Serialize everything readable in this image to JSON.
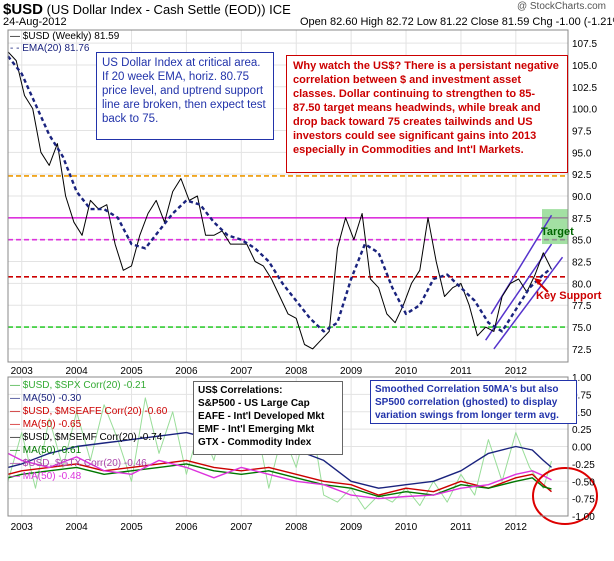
{
  "header": {
    "symbol": "$USD",
    "name": "(US Dollar Index - Cash Settle (EOD)) ICE",
    "date": "24-Aug-2012",
    "ohlc": "Open 82.60  High 82.72  Low 81.22  Close 81.59  Chg -1.00 (-1.21%)",
    "watermark": "@ StockCharts.com"
  },
  "legend_top": [
    {
      "label": "$USD (Weekly) 81.59",
      "color": "#000000"
    },
    {
      "label": "EMA(20) 81.76",
      "color": "#1a237e"
    }
  ],
  "annotations": {
    "blue_note": "US Dollar Index at critical area. If 20 week EMA, horiz. 80.75 price level, and uptrend support line are broken, then expect test back to 75.",
    "red_note": "Why watch the US$?  There is a persistant negative correlation between $ and investment asset classes.  Dollar continuing to strengthen to 85-87.50 target means headwinds, while break and drop back toward 75 creates tailwinds and US investors could see significant gains into 2013 especially in Commodities and Int'l Markets.",
    "target": "Target",
    "key_support": "Key Support",
    "corr_title": "US$ Correlations:",
    "corr_lines": [
      "S&P500 - US Large Cap",
      "EAFE - Int'l Developed Mkt",
      "EMF - Int'l Emerging Mkt",
      "GTX - Commodity Index"
    ],
    "smooth_note": "Smoothed Correlation 50MA's but also SP500 correlation (ghosted) to display variation swings from longer term avg."
  },
  "legend_bottom": [
    {
      "label": "$USD, $SPX Corr(20) -0.21",
      "color": "#33aa33"
    },
    {
      "label": "MA(50) -0.30",
      "color": "#1a237e"
    },
    {
      "label": "$USD, $MSEAFE Corr(20) -0.60",
      "color": "#cc0000"
    },
    {
      "label": "MA(50) -0.65",
      "color": "#cc0000"
    },
    {
      "label": "$USD, $MSEMF Corr(20) -0.74",
      "color": "#000000"
    },
    {
      "label": "MA(50) -0.61",
      "color": "#007700"
    },
    {
      "label": "$USD, $GTX Corr(20) -0.46",
      "color": "#aa44aa"
    },
    {
      "label": "MA(50) -0.48",
      "color": "#dd33dd"
    }
  ],
  "chart_data": [
    {
      "type": "line",
      "title": "$USD (US Dollar Index - Cash Settle (EOD)) ICE",
      "x_ticks": [
        "2003",
        "2004",
        "2005",
        "2006",
        "2007",
        "2008",
        "2009",
        "2010",
        "2011",
        "2012"
      ],
      "y_ticks": [
        72.5,
        75.0,
        77.5,
        80.0,
        82.5,
        85.0,
        87.5,
        90.0,
        92.5,
        95.0,
        97.5,
        100.0,
        102.5,
        105.0,
        107.5
      ],
      "ylim": [
        71,
        109
      ],
      "xlim": [
        2002.75,
        2012.95
      ],
      "horizontal_lines": [
        {
          "value": 92.3,
          "color": "#ee9900",
          "style": "dashed"
        },
        {
          "value": 87.5,
          "color": "#dd33dd",
          "style": "solid"
        },
        {
          "value": 85.0,
          "color": "#dd33dd",
          "style": "dashed"
        },
        {
          "value": 80.75,
          "color": "#cc0000",
          "style": "dashed"
        },
        {
          "value": 75.0,
          "color": "#33cc33",
          "style": "dashed"
        }
      ],
      "series": [
        {
          "name": "$USD (Weekly)",
          "color": "#000000",
          "x": [
            2002.75,
            2002.9,
            2003.05,
            2003.2,
            2003.35,
            2003.5,
            2003.65,
            2003.8,
            2003.95,
            2004.1,
            2004.25,
            2004.4,
            2004.55,
            2004.7,
            2004.85,
            2005.0,
            2005.15,
            2005.3,
            2005.45,
            2005.6,
            2005.75,
            2005.9,
            2006.05,
            2006.2,
            2006.35,
            2006.5,
            2006.65,
            2006.8,
            2006.95,
            2007.1,
            2007.25,
            2007.4,
            2007.55,
            2007.7,
            2007.85,
            2008.0,
            2008.15,
            2008.3,
            2008.45,
            2008.6,
            2008.75,
            2008.9,
            2009.05,
            2009.2,
            2009.35,
            2009.5,
            2009.65,
            2009.8,
            2009.95,
            2010.1,
            2010.25,
            2010.4,
            2010.55,
            2010.7,
            2010.85,
            2011.0,
            2011.15,
            2011.3,
            2011.45,
            2011.6,
            2011.75,
            2011.9,
            2012.05,
            2012.2,
            2012.35,
            2012.5,
            2012.65
          ],
          "values": [
            106.5,
            105.5,
            101.5,
            100.0,
            95.0,
            93.5,
            96.0,
            90.0,
            87.0,
            85.5,
            89.5,
            88.5,
            89.0,
            84.5,
            81.5,
            82.0,
            85.5,
            88.0,
            89.5,
            87.0,
            90.5,
            92.0,
            89.5,
            90.0,
            85.5,
            85.5,
            86.0,
            84.5,
            84.5,
            84.5,
            82.5,
            82.0,
            80.5,
            78.5,
            76.5,
            76.0,
            73.0,
            72.5,
            73.5,
            74.5,
            84.0,
            87.5,
            85.0,
            88.0,
            80.5,
            79.5,
            76.5,
            75.5,
            77.5,
            80.0,
            81.5,
            87.5,
            82.5,
            78.5,
            79.5,
            80.0,
            77.5,
            74.0,
            75.0,
            74.5,
            78.5,
            80.0,
            80.5,
            79.0,
            81.0,
            83.5,
            81.6
          ]
        },
        {
          "name": "EMA(20)",
          "color": "#1a237e",
          "x": [
            2002.75,
            2003.0,
            2003.25,
            2003.5,
            2003.75,
            2004.0,
            2004.25,
            2004.5,
            2004.75,
            2005.0,
            2005.25,
            2005.5,
            2005.75,
            2006.0,
            2006.25,
            2006.5,
            2006.75,
            2007.0,
            2007.25,
            2007.5,
            2007.75,
            2008.0,
            2008.25,
            2008.5,
            2008.75,
            2009.0,
            2009.25,
            2009.5,
            2009.75,
            2010.0,
            2010.25,
            2010.5,
            2010.75,
            2011.0,
            2011.25,
            2011.5,
            2011.75,
            2012.0,
            2012.25,
            2012.5,
            2012.65
          ],
          "values": [
            106.0,
            104.0,
            100.5,
            97.0,
            94.5,
            90.5,
            88.5,
            88.5,
            87.5,
            84.5,
            84.0,
            86.0,
            88.0,
            89.5,
            89.0,
            87.0,
            85.5,
            85.0,
            84.0,
            82.5,
            80.0,
            78.0,
            76.0,
            74.5,
            75.5,
            80.5,
            84.5,
            83.5,
            79.5,
            76.5,
            77.5,
            80.5,
            81.0,
            79.5,
            78.0,
            75.5,
            74.5,
            77.0,
            79.5,
            81.0,
            81.76
          ]
        }
      ]
    },
    {
      "type": "line",
      "title": "Correlation",
      "x_ticks": [
        "2003",
        "2004",
        "2005",
        "2006",
        "2007",
        "2008",
        "2009",
        "2010",
        "2011",
        "2012"
      ],
      "y_ticks": [
        1.0,
        0.75,
        0.5,
        0.25,
        0.0,
        -0.25,
        -0.5,
        -0.75,
        -1.0
      ],
      "ylim": [
        -1.0,
        1.0
      ],
      "xlim": [
        2002.75,
        2012.95
      ],
      "series": [
        {
          "name": "$USD, $SPX Corr(20)",
          "color": "#99dd99",
          "x": [
            2002.75,
            2003.0,
            2003.25,
            2003.5,
            2003.75,
            2004.0,
            2004.25,
            2004.5,
            2004.75,
            2005.0,
            2005.25,
            2005.5,
            2005.75,
            2006.0,
            2006.25,
            2006.5,
            2006.75,
            2007.0,
            2007.25,
            2007.5,
            2007.75,
            2008.0,
            2008.25,
            2008.5,
            2008.75,
            2009.0,
            2009.25,
            2009.5,
            2009.75,
            2010.0,
            2010.25,
            2010.5,
            2010.75,
            2011.0,
            2011.25,
            2011.5,
            2011.75,
            2012.0,
            2012.25,
            2012.5,
            2012.65
          ],
          "values": [
            -0.5,
            0.2,
            -0.6,
            0.4,
            -0.3,
            0.5,
            -0.2,
            0.6,
            0.1,
            -0.5,
            0.7,
            -0.1,
            0.5,
            -0.4,
            0.3,
            -0.2,
            0.6,
            0.0,
            0.4,
            -0.6,
            0.2,
            -0.3,
            0.5,
            -0.7,
            -0.8,
            -0.6,
            -0.9,
            -0.7,
            -0.8,
            -0.6,
            -0.85,
            -0.5,
            -0.8,
            -0.4,
            -0.7,
            0.1,
            -0.5,
            0.2,
            -0.3,
            -0.6,
            -0.21
          ]
        },
        {
          "name": "MA(50) SPX",
          "color": "#1a237e",
          "x": [
            2002.75,
            2003.0,
            2003.5,
            2004.0,
            2004.5,
            2005.0,
            2005.5,
            2006.0,
            2006.5,
            2007.0,
            2007.5,
            2008.0,
            2008.5,
            2009.0,
            2009.5,
            2010.0,
            2010.5,
            2011.0,
            2011.5,
            2012.0,
            2012.3,
            2012.5,
            2012.65
          ],
          "values": [
            -0.3,
            -0.25,
            -0.1,
            0.0,
            0.05,
            0.1,
            0.15,
            0.2,
            0.1,
            0.15,
            0.1,
            -0.05,
            -0.2,
            -0.5,
            -0.6,
            -0.55,
            -0.5,
            -0.35,
            -0.1,
            0.0,
            -0.05,
            -0.2,
            -0.3
          ]
        },
        {
          "name": "MA(50) EAFE",
          "color": "#cc0000",
          "x": [
            2002.75,
            2003.0,
            2003.5,
            2004.0,
            2004.5,
            2005.0,
            2005.5,
            2006.0,
            2006.5,
            2007.0,
            2007.5,
            2008.0,
            2008.5,
            2009.0,
            2009.5,
            2010.0,
            2010.5,
            2011.0,
            2011.5,
            2012.0,
            2012.3,
            2012.5,
            2012.65
          ],
          "values": [
            -0.4,
            -0.35,
            -0.3,
            -0.25,
            -0.35,
            -0.3,
            -0.25,
            -0.2,
            -0.3,
            -0.35,
            -0.3,
            -0.4,
            -0.5,
            -0.55,
            -0.7,
            -0.6,
            -0.65,
            -0.5,
            -0.6,
            -0.45,
            -0.4,
            -0.55,
            -0.65
          ]
        },
        {
          "name": "MA(50) EMF",
          "color": "#007700",
          "x": [
            2002.75,
            2003.0,
            2003.5,
            2004.0,
            2004.5,
            2005.0,
            2005.5,
            2006.0,
            2006.5,
            2007.0,
            2007.5,
            2008.0,
            2008.5,
            2009.0,
            2009.5,
            2010.0,
            2010.5,
            2011.0,
            2011.5,
            2012.0,
            2012.3,
            2012.5,
            2012.65
          ],
          "values": [
            -0.45,
            -0.4,
            -0.35,
            -0.3,
            -0.4,
            -0.35,
            -0.3,
            -0.25,
            -0.35,
            -0.4,
            -0.35,
            -0.45,
            -0.55,
            -0.6,
            -0.72,
            -0.65,
            -0.7,
            -0.55,
            -0.6,
            -0.5,
            -0.45,
            -0.58,
            -0.61
          ]
        },
        {
          "name": "MA(50) GTX",
          "color": "#dd33dd",
          "x": [
            2002.75,
            2003.0,
            2003.5,
            2004.0,
            2004.5,
            2005.0,
            2005.5,
            2006.0,
            2006.5,
            2007.0,
            2007.5,
            2008.0,
            2008.5,
            2009.0,
            2009.5,
            2010.0,
            2010.5,
            2011.0,
            2011.5,
            2012.0,
            2012.3,
            2012.5,
            2012.65
          ],
          "values": [
            -0.1,
            -0.2,
            -0.3,
            -0.15,
            -0.35,
            -0.4,
            -0.2,
            -0.3,
            -0.45,
            -0.3,
            -0.4,
            -0.5,
            -0.55,
            -0.7,
            -0.75,
            -0.72,
            -0.7,
            -0.6,
            -0.55,
            -0.4,
            -0.35,
            -0.42,
            -0.48
          ]
        }
      ]
    }
  ]
}
